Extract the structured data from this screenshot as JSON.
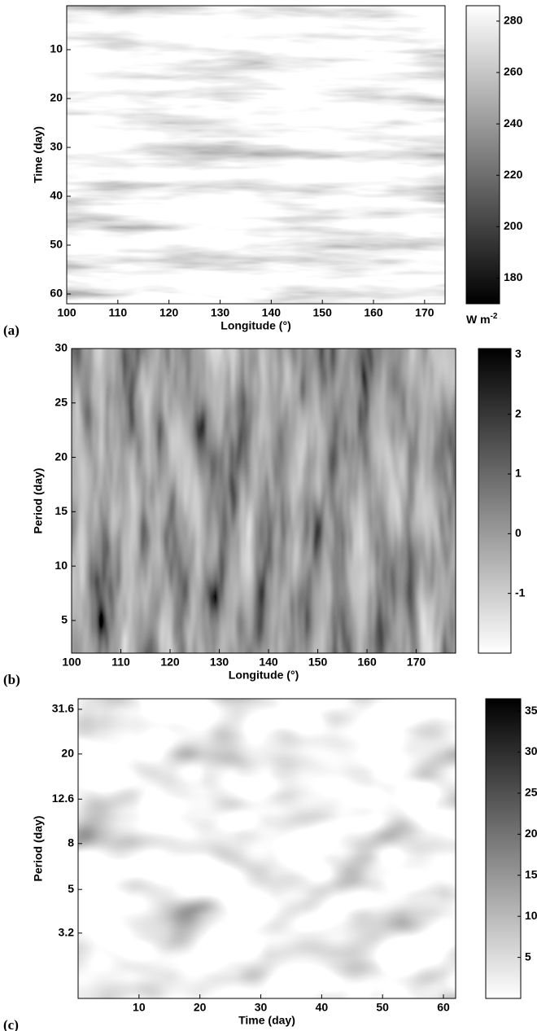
{
  "chart_data": [
    {
      "type": "heatmap",
      "panel_label": "(a)",
      "xlabel": "Longitude (°)",
      "ylabel": "Time (day)",
      "xlim": [
        100,
        174
      ],
      "xticks": [
        100,
        110,
        120,
        130,
        140,
        150,
        160,
        170
      ],
      "ylim": [
        1,
        62
      ],
      "y_inverted": true,
      "yticks": [
        10,
        20,
        30,
        40,
        50,
        60
      ],
      "colormap": "gray",
      "colorbar": {
        "lim": [
          170,
          286
        ],
        "ticks": [
          180,
          200,
          220,
          240,
          260,
          280
        ],
        "unit": {
          "base": "W m",
          "exponent": "-2"
        }
      }
    },
    {
      "type": "heatmap",
      "panel_label": "(b)",
      "xlabel": "Longitude (°)",
      "ylabel": "Period (day)",
      "xlim": [
        100,
        178
      ],
      "xticks": [
        100,
        110,
        120,
        130,
        140,
        150,
        160,
        170
      ],
      "ylim": [
        2,
        30
      ],
      "y_inverted": false,
      "yticks": [
        5,
        10,
        15,
        20,
        25,
        30
      ],
      "colormap": "gray_r",
      "colorbar": {
        "lim": [
          -2,
          3.1
        ],
        "ticks": [
          -1,
          0,
          1,
          2,
          3
        ]
      }
    },
    {
      "type": "heatmap",
      "panel_label": "(c)",
      "xlabel": "Time (day)",
      "ylabel": "Period (day)",
      "xlim": [
        0,
        62
      ],
      "xticks": [
        10,
        20,
        30,
        40,
        50,
        60
      ],
      "ylim": [
        1.64,
        35.2
      ],
      "y_inverted": false,
      "yscale": "log",
      "yticks": [
        3.2,
        5,
        8,
        12.6,
        20,
        31.6
      ],
      "colormap": "gray_r",
      "colorbar": {
        "lim": [
          0,
          36.5
        ],
        "ticks": [
          5,
          10,
          15,
          20,
          25,
          30,
          35
        ]
      }
    }
  ]
}
